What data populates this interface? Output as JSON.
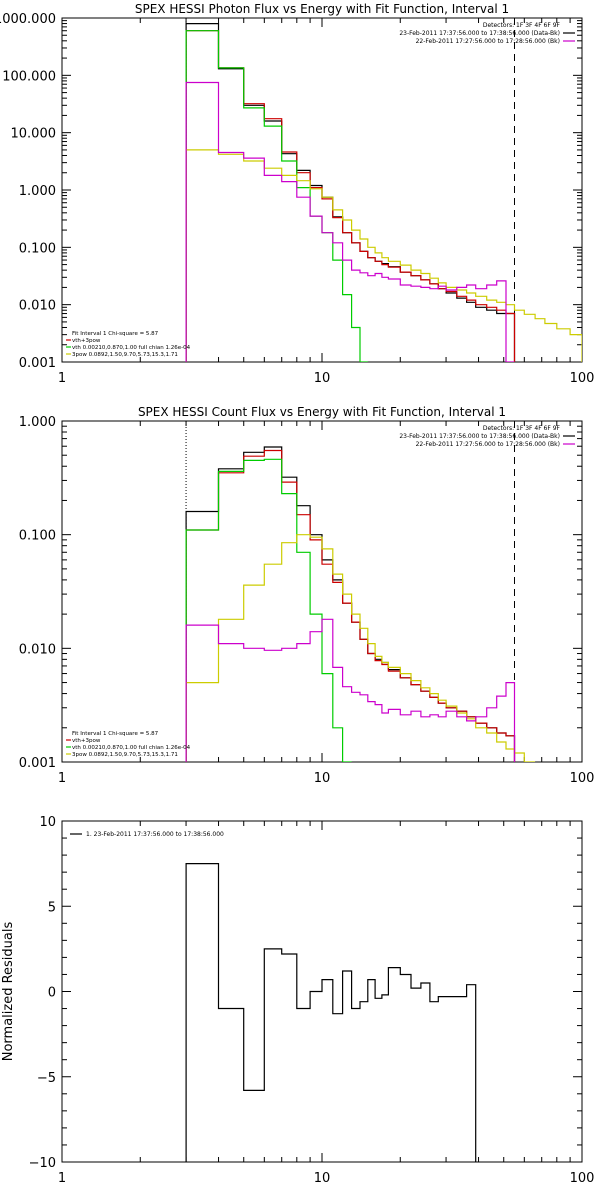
{
  "chart_data": [
    {
      "type": "line",
      "title": "SPEX HESSI Photon Flux vs Energy with Fit Function, Interval 1",
      "xscale": "log",
      "yscale": "log",
      "xlim": [
        1,
        100
      ],
      "ylim": [
        0.001,
        1000
      ],
      "xticks": [
        {
          "v": 1,
          "label": "1"
        },
        {
          "v": 10,
          "label": "10"
        },
        {
          "v": 100,
          "label": "100"
        }
      ],
      "yticks": [
        {
          "v": 1000,
          "label": "1000.000"
        },
        {
          "v": 100,
          "label": "100.000"
        },
        {
          "v": 10,
          "label": "10.000"
        },
        {
          "v": 1,
          "label": "1.000"
        },
        {
          "v": 0.1,
          "label": "0.100"
        },
        {
          "v": 0.01,
          "label": "0.010"
        },
        {
          "v": 0.001,
          "label": "0.001"
        }
      ],
      "vlines": [
        {
          "x": 3.0,
          "style": "dotted"
        },
        {
          "x": 55,
          "style": "dashed"
        }
      ],
      "legend_tr": [
        "Detectors: 1F 3F 4F 6F 9F",
        "23-Feb-2011 17:37:56.000 to 17:38:56.000 (Data-Bk)",
        "22-Feb-2011 17:27:56.000 to 17:28:56.000 (Bk)"
      ],
      "legend_tr_colors": [
        "",
        "#000000",
        "#cc00cc"
      ],
      "legend_bl": [
        "Fit Interval 1   Chi-square = 5.87",
        "vth+3pow",
        "vth 0.00210,0.870,1.00  full chian 1.26e-04",
        "3pow 0.0892,1.50,9.70,5.73,15.3,1.71"
      ],
      "legend_bl_colors": [
        "",
        "#cc0000",
        "#00cc00",
        "#cccc00"
      ],
      "edges": [
        3.0,
        4.0,
        5.0,
        6.0,
        7.0,
        8.0,
        9.0,
        10.0,
        11.0,
        12.0,
        13.0,
        14.0,
        15.0,
        16.0,
        17.0,
        18.0,
        20.0,
        22.0,
        24.0,
        26.0,
        28.0,
        30.0,
        33.0,
        36.0,
        39.0,
        43.0,
        47.0,
        51.0,
        55.0,
        60.0,
        66.0,
        72.0,
        80.0,
        90.0,
        100.0
      ],
      "series": [
        {
          "color": "#000000",
          "values": [
            800,
            130,
            30,
            16,
            4.3,
            2.2,
            1.2,
            0.75,
            0.34,
            0.18,
            0.12,
            0.085,
            0.066,
            0.057,
            0.052,
            0.046,
            0.037,
            0.032,
            0.027,
            0.023,
            0.019,
            0.016,
            0.013,
            0.011,
            0.009,
            0.008,
            0.007,
            0.007
          ]
        },
        {
          "color": "#cc0000",
          "values": [
            600,
            135,
            32,
            17.5,
            4.6,
            2.0,
            1.1,
            0.7,
            0.33,
            0.18,
            0.12,
            0.085,
            0.066,
            0.057,
            0.05,
            0.045,
            0.037,
            0.032,
            0.027,
            0.023,
            0.019,
            0.017,
            0.014,
            0.012,
            0.01,
            0.009,
            0.008,
            0.007
          ]
        },
        {
          "color": "#00cc00",
          "values": [
            600,
            135,
            27,
            13,
            3.2,
            1.1,
            0.35,
            0.18,
            0.06,
            0.015,
            0.004,
            0.001
          ]
        },
        {
          "color": "#cccc00",
          "values": [
            5,
            4.2,
            3.2,
            2.4,
            1.8,
            1.45,
            1.05,
            0.75,
            0.45,
            0.3,
            0.2,
            0.14,
            0.1,
            0.08,
            0.066,
            0.057,
            0.049,
            0.04,
            0.035,
            0.029,
            0.024,
            0.02,
            0.018,
            0.016,
            0.014,
            0.012,
            0.011,
            0.01,
            0.008,
            0.0068,
            0.0057,
            0.0047,
            0.0038,
            0.003
          ]
        },
        {
          "color": "#cc00cc",
          "values": [
            75,
            4.5,
            3.6,
            1.8,
            1.4,
            0.75,
            0.35,
            0.18,
            0.12,
            0.06,
            0.04,
            0.036,
            0.032,
            0.035,
            0.03,
            0.028,
            0.022,
            0.021,
            0.02,
            0.019,
            0.021,
            0.018,
            0.02,
            0.022,
            0.019,
            0.022,
            0.026,
            0.001
          ]
        }
      ]
    },
    {
      "type": "line",
      "title": "SPEX HESSI Count Flux vs Energy with Fit Function, Interval 1",
      "xscale": "log",
      "yscale": "log",
      "xlim": [
        1,
        100
      ],
      "ylim": [
        0.001,
        1
      ],
      "xticks": [
        {
          "v": 1,
          "label": "1"
        },
        {
          "v": 10,
          "label": "10"
        },
        {
          "v": 100,
          "label": "100"
        }
      ],
      "yticks": [
        {
          "v": 1,
          "label": "1.000"
        },
        {
          "v": 0.1,
          "label": "0.100"
        },
        {
          "v": 0.01,
          "label": "0.010"
        },
        {
          "v": 0.001,
          "label": "0.001"
        }
      ],
      "vlines": [
        {
          "x": 3.0,
          "style": "dotted"
        },
        {
          "x": 55,
          "style": "dashed"
        }
      ],
      "legend_tr": [
        "Detectors: 1F 3F 4F 6F 9F",
        "23-Feb-2011 17:37:56.000 to 17:38:56.000 (Data-Bk)",
        "22-Feb-2011 17:27:56.000 to 17:28:56.000 (Bk)"
      ],
      "legend_tr_colors": [
        "",
        "#000000",
        "#cc00cc"
      ],
      "legend_bl": [
        "Fit Interval 1   Chi-square = 5.87",
        "vth+3pow",
        "vth 0.00210,0.870,1.00  full chian 1.26e-04",
        "3pow 0.0892,1.50,9.70,5.73,15.3,1.71"
      ],
      "legend_bl_colors": [
        "",
        "#cc0000",
        "#00cc00",
        "#cccc00"
      ],
      "edges": [
        3.0,
        4.0,
        5.0,
        6.0,
        7.0,
        8.0,
        9.0,
        10.0,
        11.0,
        12.0,
        13.0,
        14.0,
        15.0,
        16.0,
        17.0,
        18.0,
        20.0,
        22.0,
        24.0,
        26.0,
        28.0,
        30.0,
        33.0,
        36.0,
        39.0,
        43.0,
        47.0,
        51.0,
        55.0,
        60.0,
        66.0,
        72.0,
        80.0,
        90.0,
        100.0
      ],
      "series": [
        {
          "color": "#000000",
          "values": [
            0.16,
            0.38,
            0.53,
            0.59,
            0.32,
            0.18,
            0.1,
            0.06,
            0.04,
            0.025,
            0.017,
            0.012,
            0.009,
            0.008,
            0.0075,
            0.0065,
            0.0055,
            0.0048,
            0.0042,
            0.0037,
            0.0033,
            0.003,
            0.0028,
            0.0025,
            0.0022,
            0.002,
            0.0018,
            0.0017
          ]
        },
        {
          "color": "#cc0000",
          "values": [
            0.11,
            0.35,
            0.49,
            0.55,
            0.29,
            0.15,
            0.09,
            0.055,
            0.038,
            0.025,
            0.017,
            0.012,
            0.009,
            0.0078,
            0.0072,
            0.0063,
            0.0055,
            0.0048,
            0.0042,
            0.0037,
            0.0033,
            0.003,
            0.0028,
            0.0025,
            0.0022,
            0.002,
            0.0018,
            0.0017
          ]
        },
        {
          "color": "#00cc00",
          "values": [
            0.11,
            0.36,
            0.45,
            0.46,
            0.23,
            0.07,
            0.02,
            0.006,
            0.002,
            0.001
          ]
        },
        {
          "color": "#cccc00",
          "values": [
            0.005,
            0.018,
            0.036,
            0.055,
            0.085,
            0.1,
            0.095,
            0.075,
            0.045,
            0.03,
            0.02,
            0.015,
            0.011,
            0.0085,
            0.0075,
            0.0068,
            0.006,
            0.0052,
            0.0045,
            0.004,
            0.0035,
            0.0031,
            0.0027,
            0.0024,
            0.002,
            0.0018,
            0.0015,
            0.0013,
            0.0012,
            0.001
          ]
        },
        {
          "color": "#cc00cc",
          "values": [
            0.016,
            0.011,
            0.01,
            0.0096,
            0.01,
            0.011,
            0.014,
            0.018,
            0.0068,
            0.0046,
            0.0041,
            0.0039,
            0.0034,
            0.0032,
            0.0027,
            0.0029,
            0.0026,
            0.0028,
            0.0025,
            0.0026,
            0.0025,
            0.0028,
            0.0025,
            0.0023,
            0.0025,
            0.003,
            0.0038,
            0.005
          ]
        }
      ]
    },
    {
      "type": "line",
      "title": "",
      "ylabel": "Normalized Residuals",
      "xscale": "log",
      "yscale": "linear",
      "xlim": [
        1,
        100
      ],
      "ylim": [
        -10,
        10
      ],
      "xticks": [
        {
          "v": 1,
          "label": "1"
        },
        {
          "v": 10,
          "label": "10"
        },
        {
          "v": 100,
          "label": "100"
        }
      ],
      "yticks": [
        {
          "v": 10,
          "label": "10"
        },
        {
          "v": 5,
          "label": "5"
        },
        {
          "v": 0,
          "label": "0"
        },
        {
          "v": -5,
          "label": "−5"
        },
        {
          "v": -10,
          "label": "−10"
        }
      ],
      "legend_tl": [
        "1. 23-Feb-2011 17:37:56.000 to 17:38:56.000"
      ],
      "edges": [
        3.0,
        4.0,
        5.0,
        6.0,
        7.0,
        8.0,
        9.0,
        10.0,
        11.0,
        12.0,
        13.0,
        14.0,
        15.0,
        16.0,
        17.0,
        18.0,
        20.0,
        22.0,
        24.0,
        26.0,
        28.0,
        30.0,
        33.0,
        36.0,
        39.0,
        43.0,
        47.0,
        51.0,
        55.0
      ],
      "series": [
        {
          "color": "#000000",
          "values": [
            7.5,
            -1.0,
            -5.8,
            2.5,
            2.2,
            -1.0,
            0.0,
            0.7,
            -1.3,
            1.2,
            -1.0,
            -0.6,
            0.7,
            -0.4,
            -0.2,
            1.4,
            1.0,
            0.2,
            0.5,
            -0.6,
            -0.3,
            -0.3,
            -0.3,
            0.4
          ]
        }
      ]
    }
  ]
}
